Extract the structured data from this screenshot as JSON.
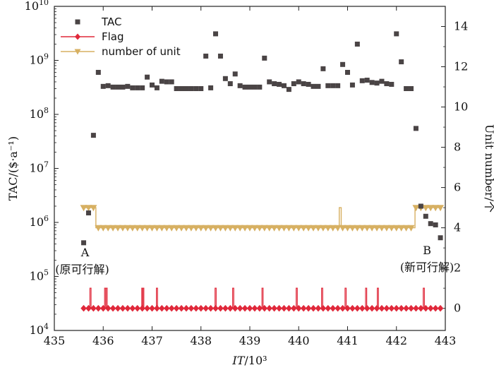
{
  "chart_data": {
    "type": "scatter",
    "x_axis": {
      "label_italic": "IT",
      "label_rest": "/10³",
      "range": [
        435,
        443
      ],
      "ticks": [
        435,
        436,
        437,
        438,
        439,
        440,
        441,
        442,
        443
      ]
    },
    "y_left": {
      "label": "TAC/($·a⁻¹)",
      "scale": "log",
      "range_exp": [
        4,
        10
      ],
      "tick_base": "10",
      "tick_exps": [
        "4",
        "5",
        "6",
        "7",
        "8",
        "9",
        "10"
      ]
    },
    "y_right": {
      "label": "Unit number/个",
      "range": [
        -1.1,
        15
      ],
      "ticks": [
        0,
        2,
        4,
        6,
        8,
        10,
        12,
        14
      ]
    },
    "legend": {
      "placement": "top-left",
      "entries": [
        {
          "label": "TAC",
          "marker": "square",
          "color": "#4a4445"
        },
        {
          "label": "Flag",
          "marker": "diamond",
          "color": "#e0283a"
        },
        {
          "label": "number of unit",
          "marker": "triangle-down",
          "color": "#d7b062"
        }
      ]
    },
    "series": [
      {
        "name": "TAC",
        "axis": "left",
        "points": [
          [
            435.6,
            420000.0
          ],
          [
            435.7,
            1500000.0
          ],
          [
            435.8,
            41000000.0
          ],
          [
            435.9,
            600000000.0
          ],
          [
            436.0,
            330000000.0
          ],
          [
            436.1,
            340000000.0
          ],
          [
            436.2,
            320000000.0
          ],
          [
            436.3,
            320000000.0
          ],
          [
            436.4,
            320000000.0
          ],
          [
            436.5,
            330000000.0
          ],
          [
            436.6,
            310000000.0
          ],
          [
            436.7,
            310000000.0
          ],
          [
            436.8,
            310000000.0
          ],
          [
            436.9,
            490000000.0
          ],
          [
            437.0,
            350000000.0
          ],
          [
            437.1,
            310000000.0
          ],
          [
            437.2,
            410000000.0
          ],
          [
            437.3,
            400000000.0
          ],
          [
            437.4,
            400000000.0
          ],
          [
            437.5,
            300000000.0
          ],
          [
            437.6,
            300000000.0
          ],
          [
            437.7,
            300000000.0
          ],
          [
            437.8,
            300000000.0
          ],
          [
            437.9,
            300000000.0
          ],
          [
            438.0,
            300000000.0
          ],
          [
            438.1,
            1200000000.0
          ],
          [
            438.2,
            310000000.0
          ],
          [
            438.3,
            3100000000.0
          ],
          [
            438.4,
            1200000000.0
          ],
          [
            438.5,
            460000000.0
          ],
          [
            438.6,
            370000000.0
          ],
          [
            438.7,
            560000000.0
          ],
          [
            438.8,
            340000000.0
          ],
          [
            438.9,
            320000000.0
          ],
          [
            439.0,
            320000000.0
          ],
          [
            439.1,
            320000000.0
          ],
          [
            439.2,
            320000000.0
          ],
          [
            439.3,
            1100000000.0
          ],
          [
            439.4,
            400000000.0
          ],
          [
            439.5,
            370000000.0
          ],
          [
            439.6,
            360000000.0
          ],
          [
            439.7,
            340000000.0
          ],
          [
            439.8,
            290000000.0
          ],
          [
            439.9,
            370000000.0
          ],
          [
            440.0,
            400000000.0
          ],
          [
            440.1,
            370000000.0
          ],
          [
            440.2,
            360000000.0
          ],
          [
            440.3,
            330000000.0
          ],
          [
            440.4,
            330000000.0
          ],
          [
            440.5,
            700000000.0
          ],
          [
            440.6,
            340000000.0
          ],
          [
            440.7,
            340000000.0
          ],
          [
            440.8,
            340000000.0
          ],
          [
            440.9,
            840000000.0
          ],
          [
            441.0,
            600000000.0
          ],
          [
            441.1,
            350000000.0
          ],
          [
            441.2,
            2000000000.0
          ],
          [
            441.3,
            420000000.0
          ],
          [
            441.4,
            430000000.0
          ],
          [
            441.5,
            390000000.0
          ],
          [
            441.6,
            380000000.0
          ],
          [
            441.7,
            410000000.0
          ],
          [
            441.8,
            370000000.0
          ],
          [
            441.9,
            360000000.0
          ],
          [
            442.0,
            3100000000.0
          ],
          [
            442.1,
            940000000.0
          ],
          [
            442.2,
            300000000.0
          ],
          [
            442.3,
            300000000.0
          ],
          [
            442.4,
            55000000.0
          ],
          [
            442.5,
            2000000.0
          ],
          [
            442.6,
            1300000.0
          ],
          [
            442.7,
            950000.0
          ],
          [
            442.8,
            900000.0
          ],
          [
            442.9,
            520000.0
          ]
        ]
      },
      {
        "name": "Flag",
        "axis": "right",
        "marker_range": [
          435.6,
          442.9
        ],
        "marker_step": 0.1,
        "value": 0,
        "spike_x": [
          435.74,
          436.04,
          436.07,
          436.8,
          436.82,
          437.1,
          438.3,
          438.66,
          439.26,
          439.96,
          440.48,
          440.96,
          441.38,
          441.62,
          442.56
        ],
        "spike_value": 1
      },
      {
        "name": "number of unit",
        "axis": "right",
        "steps": [
          [
            435.6,
            5
          ],
          [
            435.85,
            4
          ],
          [
            440.83,
            5
          ],
          [
            440.87,
            4
          ],
          [
            442.38,
            5
          ],
          [
            442.9,
            5
          ]
        ],
        "marker_x_start": 435.6,
        "marker_x_end": 442.9,
        "marker_step": 0.1,
        "marker_values_by_x": {
          "low": 4,
          "high": 5,
          "high_until": 435.8,
          "high_from": 442.4
        }
      }
    ],
    "annotations": [
      {
        "name": "A",
        "lines": [
          "A",
          "(原可行解)"
        ],
        "x": 435.6
      },
      {
        "name": "B",
        "lines": [
          "B",
          "(新可行解)"
        ],
        "x": 442.9
      }
    ]
  }
}
